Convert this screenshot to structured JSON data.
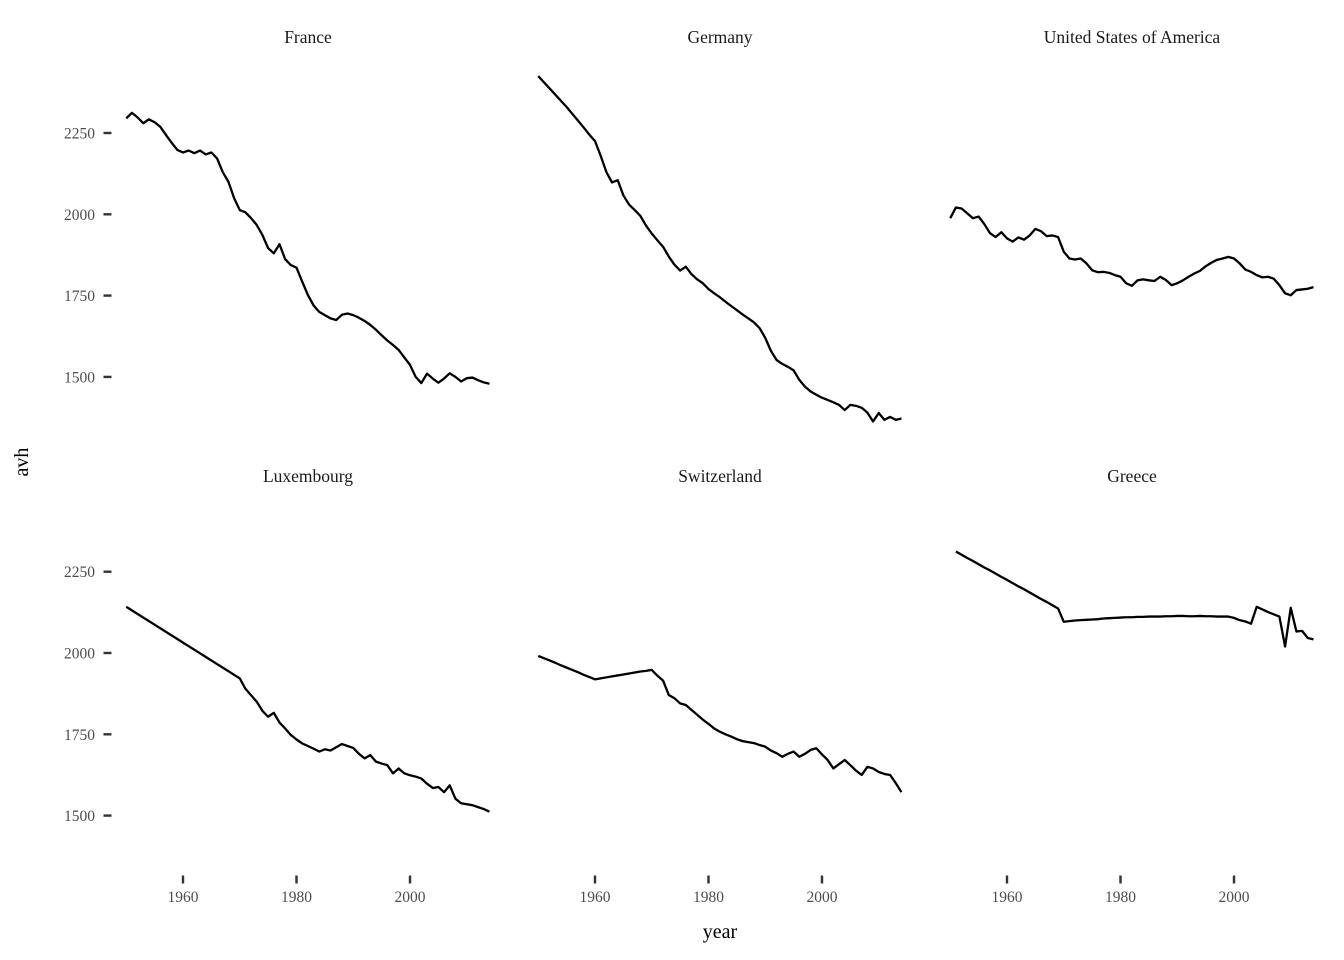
{
  "chart_data": {
    "type": "line",
    "title": "",
    "xlabel": "year",
    "ylabel": "avh",
    "x_domain": [
      1950,
      2014
    ],
    "x_ticks": [
      1960,
      1980,
      2000
    ],
    "y_ticks": [
      2250,
      2000,
      1750,
      1500
    ],
    "grid": "off",
    "legend": "none",
    "facet_layout": {
      "rows": 2,
      "cols": 3
    },
    "colors": {
      "line": "#000000",
      "tick_mark": "#333333",
      "tick_label": "#4d4d4d",
      "facet_title": "#1a1a1a",
      "axis_title": "#000000",
      "background": "#ffffff"
    },
    "panels": [
      {
        "title": "France",
        "row": 0,
        "col": 0,
        "start_year": 1950,
        "values": [
          2295,
          2312,
          2298,
          2280,
          2292,
          2283,
          2269,
          2244,
          2220,
          2198,
          2190,
          2196,
          2188,
          2196,
          2184,
          2190,
          2172,
          2130,
          2100,
          2050,
          2013,
          2006,
          1988,
          1967,
          1936,
          1896,
          1880,
          1908,
          1862,
          1844,
          1836,
          1793,
          1752,
          1720,
          1700,
          1690,
          1680,
          1675,
          1691,
          1695,
          1690,
          1682,
          1672,
          1660,
          1645,
          1628,
          1612,
          1598,
          1583,
          1560,
          1537,
          1500,
          1481,
          1510,
          1495,
          1482,
          1495,
          1511,
          1500,
          1486,
          1496,
          1498,
          1490,
          1483,
          1479
        ]
      },
      {
        "title": "Germany",
        "row": 0,
        "col": 1,
        "start_year": 1950,
        "values": [
          2425,
          2406,
          2387,
          2368,
          2349,
          2330,
          2309,
          2288,
          2267,
          2245,
          2225,
          2180,
          2130,
          2098,
          2105,
          2058,
          2030,
          2013,
          1995,
          1965,
          1941,
          1920,
          1900,
          1870,
          1845,
          1827,
          1839,
          1816,
          1800,
          1788,
          1770,
          1757,
          1745,
          1731,
          1718,
          1705,
          1692,
          1680,
          1668,
          1650,
          1620,
          1580,
          1552,
          1540,
          1531,
          1520,
          1491,
          1470,
          1455,
          1445,
          1436,
          1429,
          1422,
          1414,
          1398,
          1414,
          1411,
          1405,
          1390,
          1363,
          1389,
          1368,
          1377,
          1368,
          1372
        ]
      },
      {
        "title": "United States of America",
        "row": 0,
        "col": 2,
        "start_year": 1950,
        "values": [
          1988,
          2021,
          2018,
          2003,
          1988,
          1993,
          1970,
          1942,
          1930,
          1945,
          1926,
          1916,
          1929,
          1922,
          1935,
          1955,
          1948,
          1933,
          1935,
          1930,
          1885,
          1864,
          1861,
          1864,
          1849,
          1828,
          1822,
          1823,
          1820,
          1813,
          1808,
          1788,
          1780,
          1797,
          1800,
          1797,
          1795,
          1808,
          1798,
          1782,
          1788,
          1797,
          1808,
          1818,
          1826,
          1840,
          1851,
          1860,
          1864,
          1869,
          1864,
          1849,
          1830,
          1823,
          1813,
          1806,
          1808,
          1802,
          1782,
          1757,
          1751,
          1767,
          1769,
          1771,
          1776
        ]
      },
      {
        "title": "Luxembourg",
        "row": 1,
        "col": 0,
        "start_year": 1950,
        "values": [
          2142,
          2131,
          2120,
          2109,
          2098,
          2087,
          2076,
          2065,
          2054,
          2043,
          2032,
          2021,
          2010,
          1999,
          1988,
          1977,
          1966,
          1955,
          1944,
          1933,
          1922,
          1890,
          1870,
          1850,
          1822,
          1804,
          1816,
          1786,
          1768,
          1748,
          1734,
          1722,
          1714,
          1706,
          1697,
          1704,
          1700,
          1710,
          1720,
          1714,
          1708,
          1690,
          1676,
          1686,
          1666,
          1660,
          1655,
          1630,
          1645,
          1630,
          1624,
          1620,
          1614,
          1598,
          1585,
          1588,
          1572,
          1593,
          1552,
          1538,
          1535,
          1532,
          1526,
          1520,
          1512
        ]
      },
      {
        "title": "Switzerland",
        "row": 1,
        "col": 1,
        "start_year": 1950,
        "values": [
          1991,
          1984,
          1977,
          1970,
          1962,
          1955,
          1948,
          1941,
          1933,
          1926,
          1919,
          1922,
          1925,
          1928,
          1931,
          1934,
          1937,
          1940,
          1943,
          1945,
          1948,
          1930,
          1915,
          1871,
          1861,
          1845,
          1840,
          1825,
          1810,
          1795,
          1782,
          1768,
          1758,
          1750,
          1743,
          1735,
          1729,
          1726,
          1723,
          1717,
          1712,
          1700,
          1692,
          1681,
          1690,
          1697,
          1681,
          1690,
          1702,
          1707,
          1688,
          1671,
          1645,
          1658,
          1671,
          1655,
          1638,
          1625,
          1650,
          1645,
          1634,
          1628,
          1625,
          1600,
          1572
        ]
      },
      {
        "title": "Greece",
        "row": 1,
        "col": 2,
        "start_year": 1951,
        "values": [
          2312,
          2302,
          2292,
          2283,
          2273,
          2263,
          2254,
          2244,
          2234,
          2225,
          2215,
          2205,
          2196,
          2186,
          2176,
          2166,
          2157,
          2147,
          2137,
          2096,
          2098,
          2100,
          2101,
          2102,
          2103,
          2104,
          2106,
          2107,
          2108,
          2109,
          2110,
          2110,
          2111,
          2111,
          2112,
          2112,
          2112,
          2113,
          2113,
          2114,
          2114,
          2113,
          2113,
          2114,
          2113,
          2113,
          2112,
          2112,
          2112,
          2108,
          2101,
          2097,
          2090,
          2142,
          2134,
          2126,
          2119,
          2112,
          2020,
          2139,
          2066,
          2068,
          2046,
          2042
        ]
      }
    ]
  }
}
